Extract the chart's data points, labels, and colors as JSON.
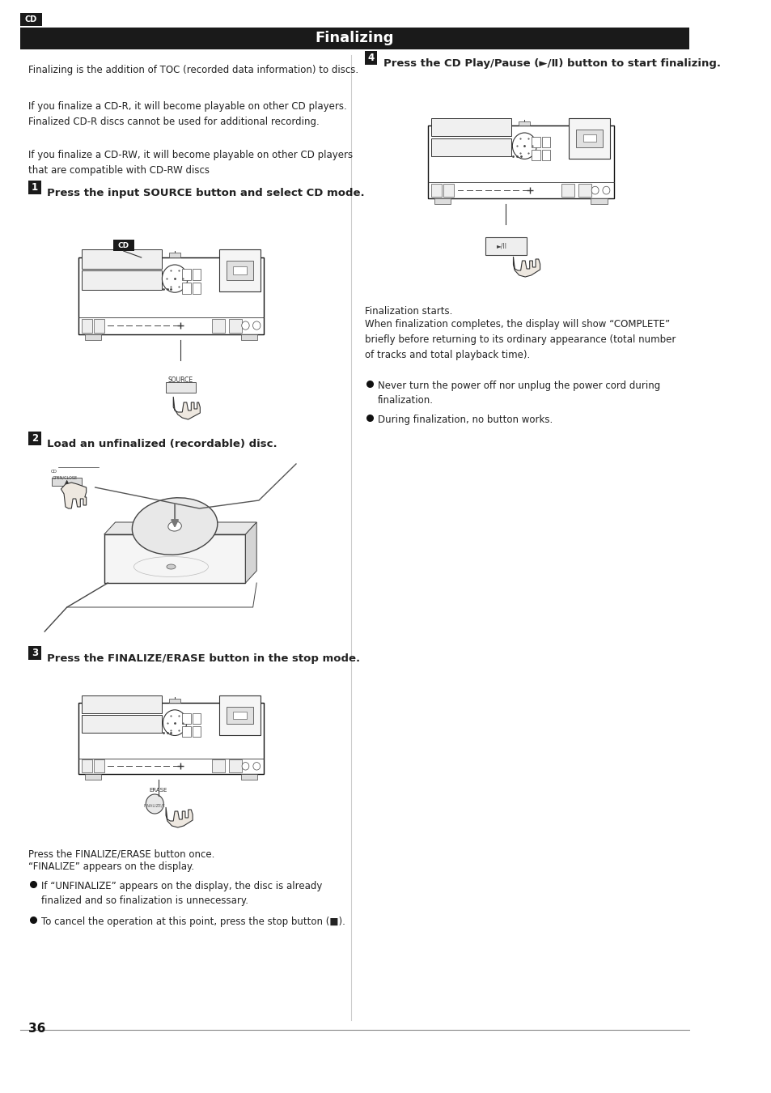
{
  "title": "Finalizing",
  "cd_label": "CD",
  "bg_color": "#ffffff",
  "header_bg": "#1a1a1a",
  "header_text_color": "#ffffff",
  "body_text_color": "#222222",
  "page_number": "36",
  "intro1": "Finalizing is the addition of TOC (recorded data information) to discs.",
  "intro2": "If you finalize a CD-R, it will become playable on other CD players.\nFinalized CD-R discs cannot be used for additional recording.",
  "intro3": "If you finalize a CD-RW, it will become playable on other CD players\nthat are compatible with CD-RW discs",
  "step1_text": "Press the input SOURCE button and select CD mode.",
  "step2_text": "Load an unfinalized (recordable) disc.",
  "step3_text": "Press the FINALIZE/ERASE button in the stop mode.",
  "step3_note1": "Press the FINALIZE/ERASE button once.",
  "step3_note2": "“FINALIZE” appears on the display.",
  "step3_bullet1": "If “UNFINALIZE” appears on the display, the disc is already\nfinalized and so finalization is unnecessary.",
  "step3_bullet2": "To cancel the operation at this point, press the stop button (■).",
  "step4_text": "Press the CD Play/Pause (►/Ⅱ) button to start finalizing.",
  "step4_note1": "Finalization starts.",
  "step4_note2": "When finalization completes, the display will show “COMPLETE”\nbriefly before returning to its ordinary appearance (total number\nof tracks and total playback time).",
  "step4_bullet1": "Never turn the power off nor unplug the power cord during\nfinalization.",
  "step4_bullet2": "During finalization, no button works."
}
